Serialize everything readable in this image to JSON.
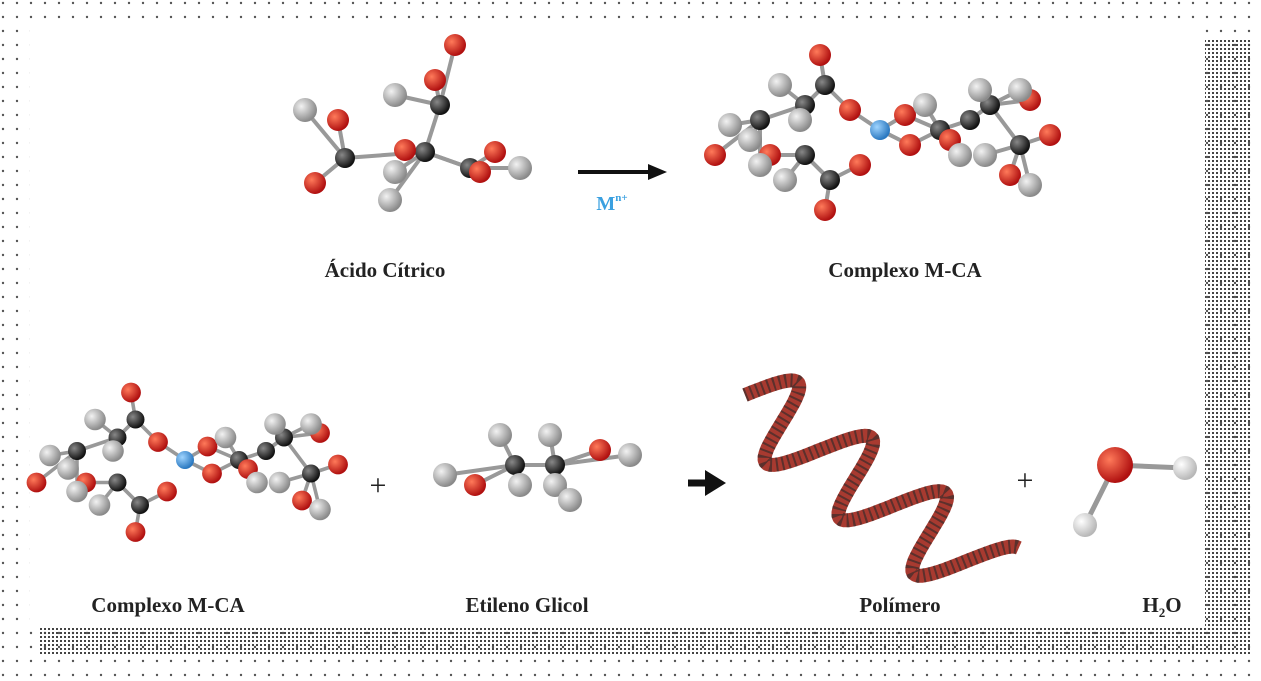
{
  "top": {
    "reactant_label": "Ácido Cítrico",
    "arrow_label": {
      "base": "M",
      "sup": "n+"
    },
    "product_label": "Complexo M-CA"
  },
  "bottom": {
    "reactant_1_label": "Complexo M-CA",
    "plus_1": "+",
    "reactant_2_label": "Etileno Glicol",
    "product_1_label": "Polímero",
    "plus_2": "+",
    "product_2_label": {
      "base": "H",
      "sub": "2",
      "tail": "O"
    }
  }
}
